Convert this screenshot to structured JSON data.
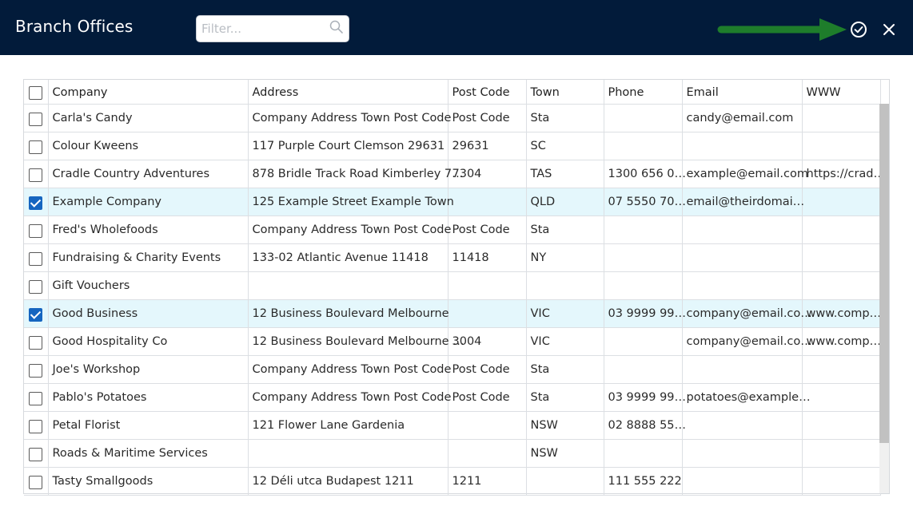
{
  "header": {
    "title": "Branch Offices",
    "filter_placeholder": "Filter...",
    "search_icon": "search-icon",
    "confirm_icon": "check-circle-icon",
    "close_icon": "close-icon",
    "arrow_color": "#1e7d2b",
    "background": "#021b3a"
  },
  "table": {
    "columns": [
      "Company",
      "Address",
      "Post Code",
      "Town",
      "Phone",
      "Email",
      "WWW"
    ],
    "rows": [
      {
        "checked": false,
        "company": "Carla's Candy",
        "address": "Company Address Town Post Code",
        "postcode": "Post Code",
        "town": "Sta",
        "phone": "",
        "email": "candy@email.com",
        "www": ""
      },
      {
        "checked": false,
        "company": "Colour Kweens",
        "address": "117 Purple Court Clemson 29631",
        "postcode": "29631",
        "town": "SC",
        "phone": "",
        "email": "",
        "www": ""
      },
      {
        "checked": false,
        "company": "Cradle Country Adventures",
        "address": "878 Bridle Track Road Kimberley 7…",
        "postcode": "7304",
        "town": "TAS",
        "phone": "1300 656 0…",
        "email": "example@email.com",
        "www": "https://crad…"
      },
      {
        "checked": true,
        "company": "Example Company",
        "address": "125 Example Street Example Town",
        "postcode": "",
        "town": "QLD",
        "phone": "07 5550 70…",
        "email": "email@theirdomai…",
        "www": ""
      },
      {
        "checked": false,
        "company": "Fred's Wholefoods",
        "address": "Company Address Town Post Code",
        "postcode": "Post Code",
        "town": "Sta",
        "phone": "",
        "email": "",
        "www": ""
      },
      {
        "checked": false,
        "company": "Fundraising & Charity Events",
        "address": "133-02 Atlantic Avenue 11418",
        "postcode": "11418",
        "town": "NY",
        "phone": "",
        "email": "",
        "www": ""
      },
      {
        "checked": false,
        "company": "Gift Vouchers",
        "address": "",
        "postcode": "",
        "town": "",
        "phone": "",
        "email": "",
        "www": ""
      },
      {
        "checked": true,
        "company": "Good Business",
        "address": "12 Business Boulevard Melbourne",
        "postcode": "",
        "town": "VIC",
        "phone": "03 9999 99…",
        "email": "company@email.co…",
        "www": "www.comp…"
      },
      {
        "checked": false,
        "company": "Good Hospitality Co",
        "address": "12 Business Boulevard Melbourne …",
        "postcode": "3004",
        "town": "VIC",
        "phone": "",
        "email": "company@email.co…",
        "www": "www.comp…"
      },
      {
        "checked": false,
        "company": "Joe's Workshop",
        "address": "Company Address Town Post Code",
        "postcode": "Post Code",
        "town": "Sta",
        "phone": "",
        "email": "",
        "www": ""
      },
      {
        "checked": false,
        "company": "Pablo's Potatoes",
        "address": "Company Address Town Post Code",
        "postcode": "Post Code",
        "town": "Sta",
        "phone": "03 9999 99…",
        "email": "potatoes@example…",
        "www": ""
      },
      {
        "checked": false,
        "company": "Petal Florist",
        "address": "121 Flower Lane Gardenia",
        "postcode": "",
        "town": "NSW",
        "phone": "02 8888 55…",
        "email": "",
        "www": ""
      },
      {
        "checked": false,
        "company": "Roads & Maritime Services",
        "address": "",
        "postcode": "",
        "town": "NSW",
        "phone": "",
        "email": "",
        "www": ""
      },
      {
        "checked": false,
        "company": "Tasty Smallgoods",
        "address": "12 Déli utca Budapest 1211",
        "postcode": "1211",
        "town": "",
        "phone": "111 555 222",
        "email": "",
        "www": ""
      }
    ],
    "selected_row_color": "#e4f7fc",
    "checkbox_color": "#1565c0"
  }
}
